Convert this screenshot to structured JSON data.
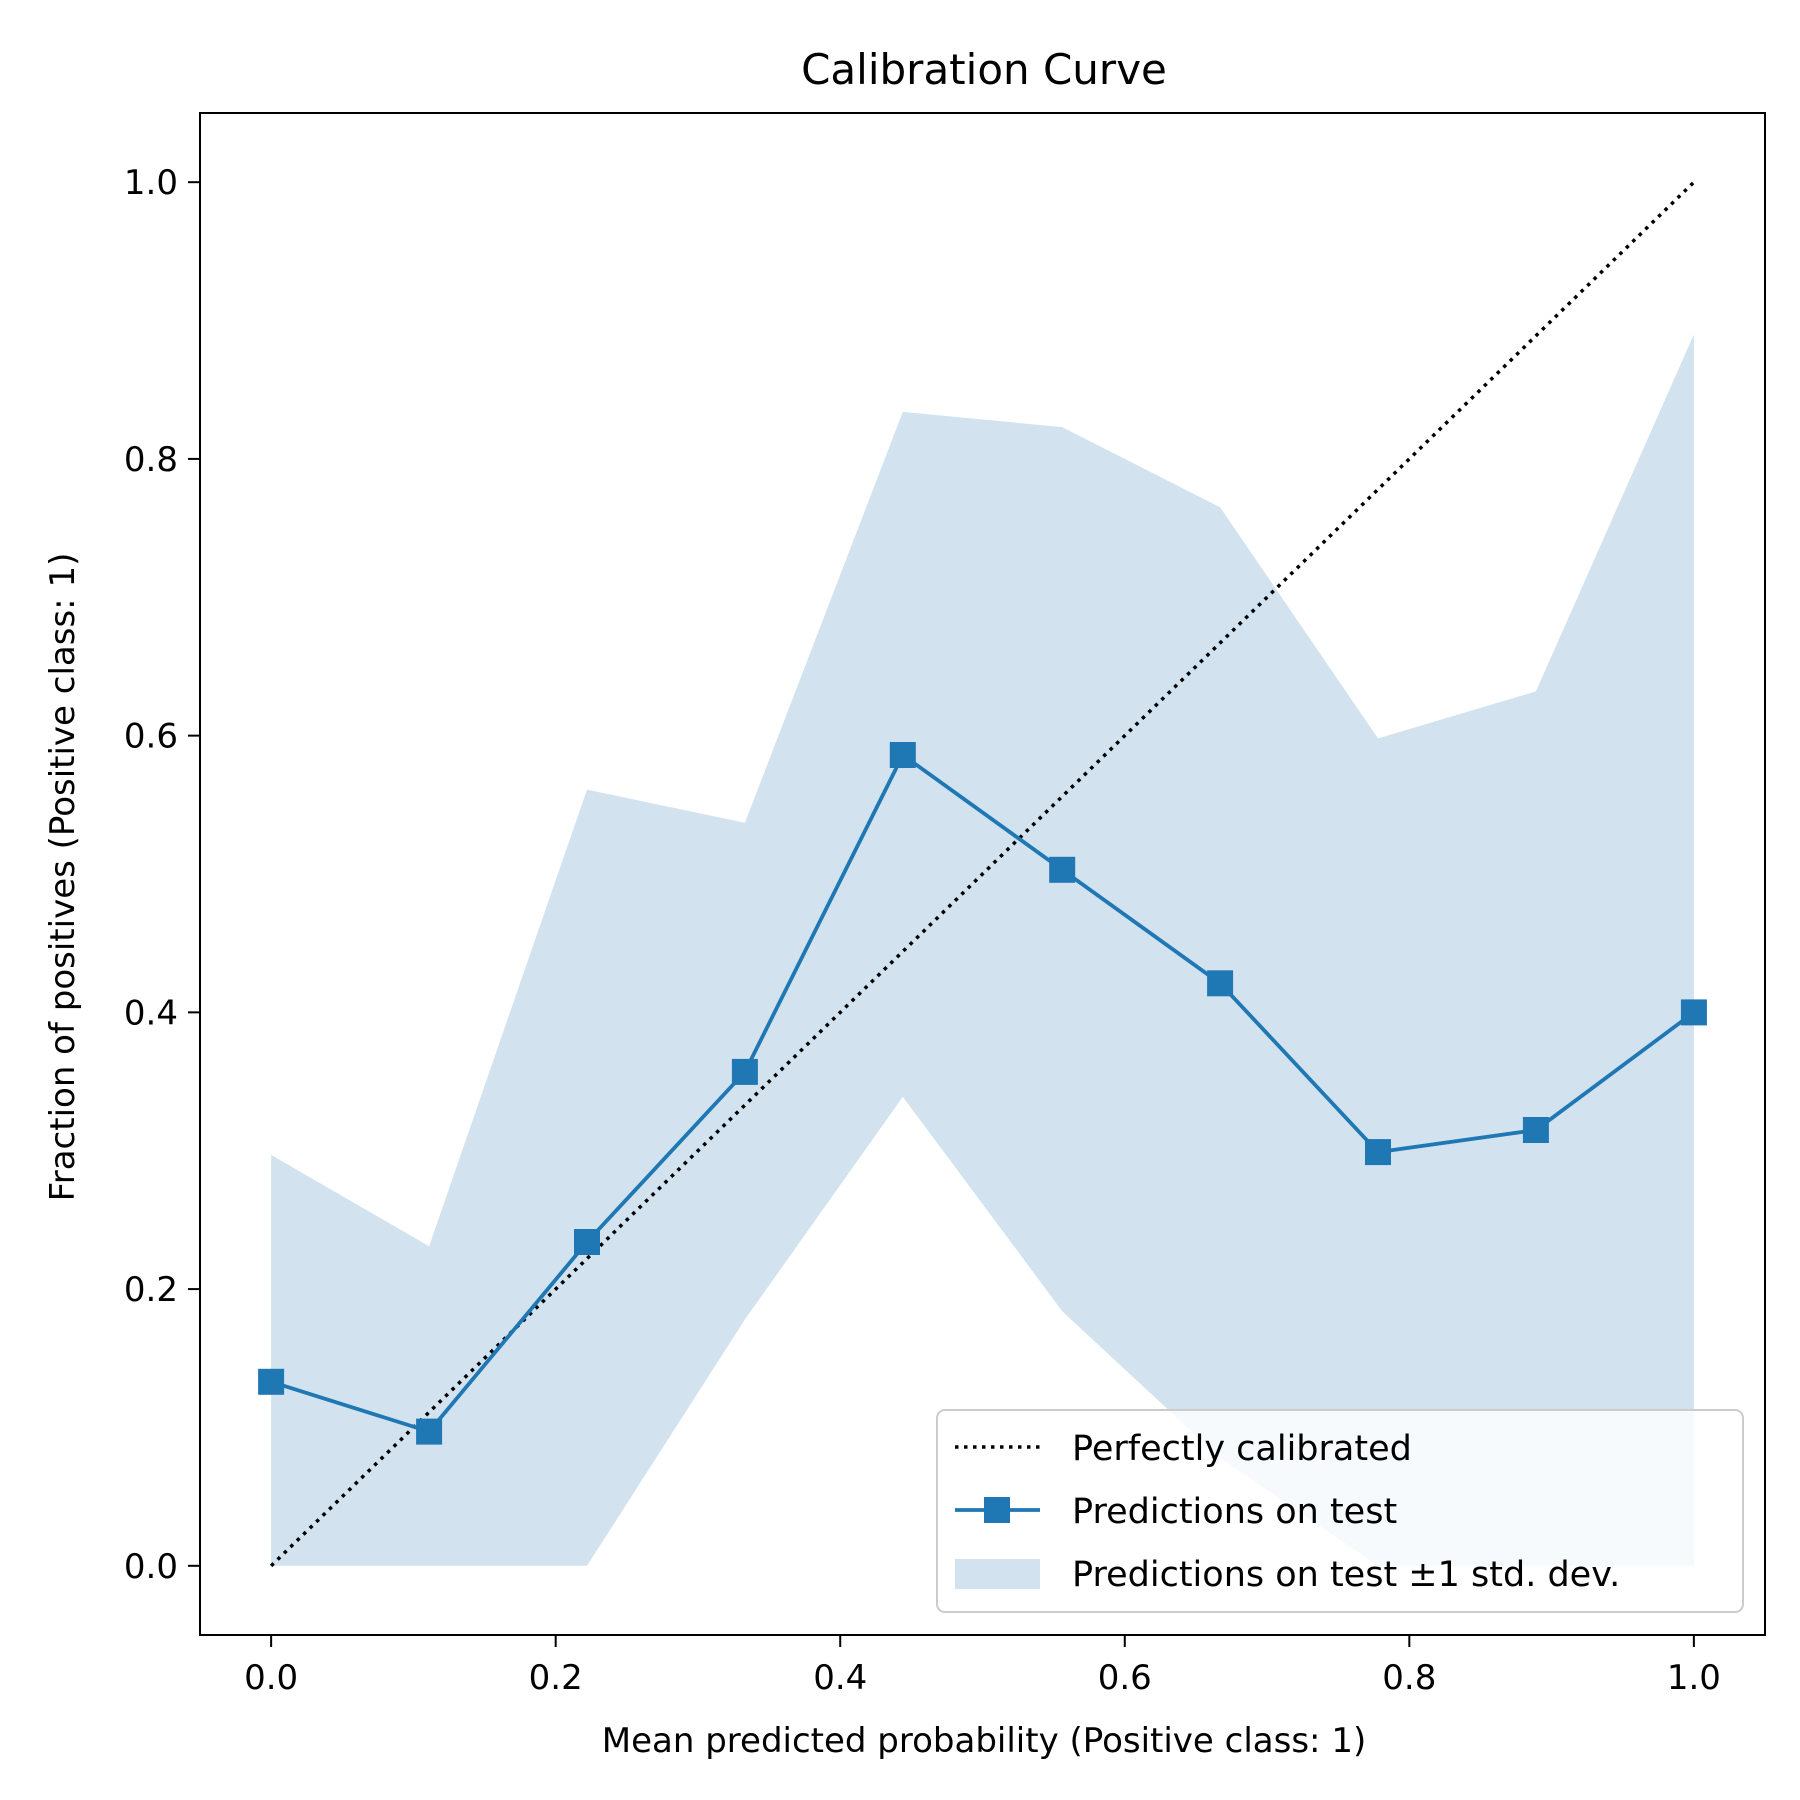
{
  "chart_data": {
    "type": "line",
    "title": "Calibration Curve",
    "xlabel": "Mean predicted probability (Positive class: 1)",
    "ylabel": "Fraction of positives (Positive class: 1)",
    "xlim": [
      -0.05,
      1.05
    ],
    "ylim": [
      -0.05,
      1.05
    ],
    "xticks": [
      "0.0",
      "0.2",
      "0.4",
      "0.6",
      "0.8",
      "1.0"
    ],
    "yticks": [
      "0.0",
      "0.2",
      "0.4",
      "0.6",
      "0.8",
      "1.0"
    ],
    "grid": false,
    "legend_position": "lower-right",
    "series": [
      {
        "name": "Perfectly calibrated",
        "style": "dotted",
        "color": "#000000",
        "x": [
          0.0,
          1.0
        ],
        "y": [
          0.0,
          1.0
        ]
      },
      {
        "name": "Predictions on test",
        "style": "line-square-markers",
        "color": "#1f77b4",
        "x": [
          0.0,
          0.111,
          0.222,
          0.333,
          0.444,
          0.556,
          0.667,
          0.778,
          0.889,
          1.0
        ],
        "y": [
          0.133,
          0.097,
          0.234,
          0.357,
          0.586,
          0.503,
          0.421,
          0.299,
          0.315,
          0.4
        ]
      }
    ],
    "band": {
      "name": "Predictions on test ±1 std. dev.",
      "color": "#d2e3ef",
      "x": [
        0.0,
        0.111,
        0.222,
        0.333,
        0.444,
        0.556,
        0.667,
        0.778,
        0.889,
        1.0
      ],
      "upper": [
        0.297,
        0.231,
        0.561,
        0.537,
        0.834,
        0.823,
        0.765,
        0.598,
        0.632,
        0.89
      ],
      "lower": [
        0.0,
        0.0,
        0.0,
        0.178,
        0.339,
        0.184,
        0.078,
        0.0,
        0.0,
        0.0
      ]
    }
  }
}
